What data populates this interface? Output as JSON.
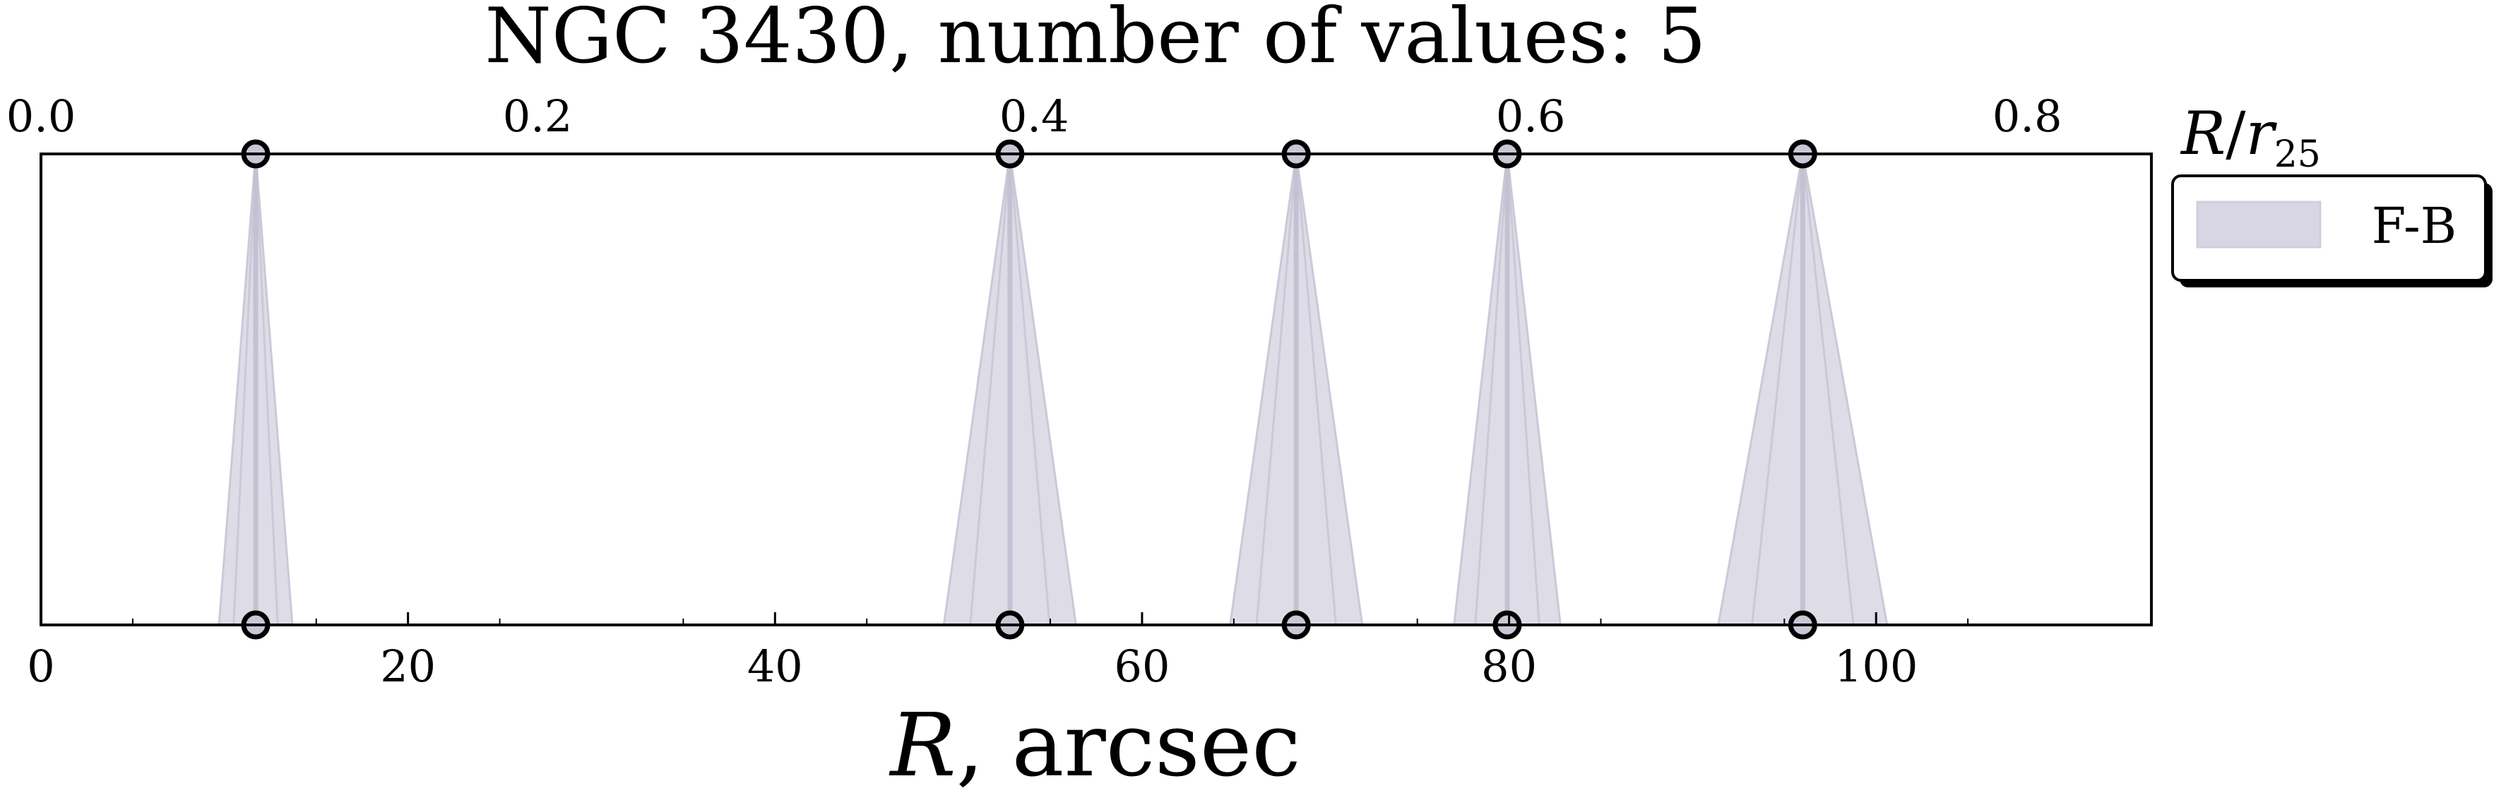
{
  "chart_data": {
    "type": "scatter",
    "title": "NGC 3430, number of values: 5",
    "xlabel": "R, arcsec",
    "xlabel_italic_part": "R",
    "xlabel_rest": ", arcsec",
    "top_xlabel": "R/r25",
    "xlim": [
      0,
      115
    ],
    "top_xlim": [
      0.0,
      0.85
    ],
    "x_ticks": [
      0,
      20,
      40,
      60,
      80,
      100
    ],
    "x_tick_labels": [
      "0",
      "20",
      "40",
      "60",
      "80",
      "100"
    ],
    "top_ticks": [
      0.0,
      0.2,
      0.4,
      0.6,
      0.8
    ],
    "top_tick_labels": [
      "0.0",
      "0.2",
      "0.4",
      "0.6",
      "0.8"
    ],
    "series": [
      {
        "name": "F-B",
        "color": "#d8d6e2",
        "points": [
          {
            "x": 11.7,
            "halfwidth": 2.0
          },
          {
            "x": 52.8,
            "halfwidth": 3.6
          },
          {
            "x": 68.4,
            "halfwidth": 3.6
          },
          {
            "x": 79.9,
            "halfwidth": 2.9
          },
          {
            "x": 96.0,
            "halfwidth": 4.6
          }
        ]
      }
    ],
    "legend": {
      "position": "right-outside-top",
      "entries": [
        "F-B"
      ]
    },
    "grid": false
  }
}
